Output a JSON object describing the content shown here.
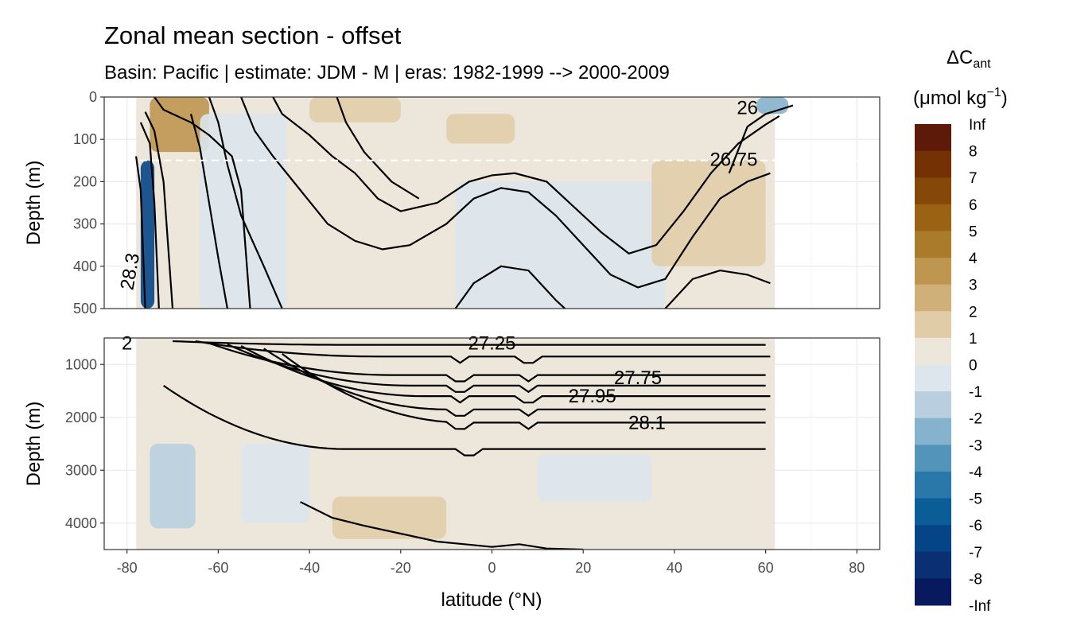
{
  "chart_data": {
    "type": "heatmap",
    "title": "Zonal mean section - offset",
    "subtitle": "Basin: Pacific | estimate: JDM - M | eras: 1982-1999 --> 2000-2009",
    "xlabel": "latitude (°N)",
    "xlim": [
      -85,
      85
    ],
    "xticks": [
      -80,
      -60,
      -40,
      -20,
      0,
      20,
      40,
      60,
      80
    ],
    "panels": [
      {
        "name": "upper",
        "ylabel": "Depth (m)",
        "ylim": [
          0,
          500
        ],
        "yticks": [
          0,
          100,
          200,
          300,
          400,
          500
        ],
        "reference_line_depth": 150,
        "data_lat_range": [
          -78,
          62
        ],
        "fields": [
          {
            "lat": [
              -75,
              -62
            ],
            "depth": [
              0,
              130
            ],
            "value": 3.5
          },
          {
            "lat": [
              -40,
              -20
            ],
            "depth": [
              0,
              60
            ],
            "value": 1.5
          },
          {
            "lat": [
              -10,
              5
            ],
            "depth": [
              40,
              110
            ],
            "value": 1.5
          },
          {
            "lat": [
              -8,
              38
            ],
            "depth": [
              200,
              500
            ],
            "value": -0.5
          },
          {
            "lat": [
              -64,
              -45
            ],
            "depth": [
              40,
              500
            ],
            "value": -0.5
          },
          {
            "lat": [
              -77,
              -74
            ],
            "depth": [
              150,
              500
            ],
            "value": -6
          },
          {
            "lat": [
              35,
              60
            ],
            "depth": [
              150,
              400
            ],
            "value": 1.5
          },
          {
            "lat": [
              58,
              65
            ],
            "depth": [
              0,
              40
            ],
            "value": -2
          }
        ],
        "contour_labels": [
          {
            "text": "26",
            "lat": 56,
            "depth": 25
          },
          {
            "text": "26.75",
            "lat": 53,
            "depth": 148
          },
          {
            "text": "28.3",
            "lat": -78,
            "depth": 400
          }
        ]
      },
      {
        "name": "lower",
        "ylabel": "Depth (m)",
        "ylim": [
          500,
          4500
        ],
        "yticks": [
          1000,
          2000,
          3000,
          4000
        ],
        "data_lat_range": [
          -78,
          62
        ],
        "fields": [
          {
            "lat": [
              -75,
              -65
            ],
            "depth": [
              2500,
              4100
            ],
            "value": -1.5
          },
          {
            "lat": [
              -55,
              -40
            ],
            "depth": [
              2500,
              4000
            ],
            "value": -0.5
          },
          {
            "lat": [
              10,
              35
            ],
            "depth": [
              2700,
              3600
            ],
            "value": -0.5
          },
          {
            "lat": [
              -35,
              -10
            ],
            "depth": [
              3500,
              4300
            ],
            "value": 1.5
          }
        ],
        "contour_labels": [
          {
            "text": "27.25",
            "lat": 0,
            "depth": 600
          },
          {
            "text": "27.75",
            "lat": 32,
            "depth": 1250
          },
          {
            "text": "27.95",
            "lat": 22,
            "depth": 1600
          },
          {
            "text": "28.1",
            "lat": 34,
            "depth": 2100
          },
          {
            "text": "2",
            "lat": -80,
            "depth": 600
          }
        ]
      }
    ],
    "legend": {
      "title_main": "ΔC",
      "title_sub": "ant",
      "unit_text": "(μmol kg",
      "unit_sup": "−1",
      "unit_close": ")",
      "labels": [
        "Inf",
        "8",
        "7",
        "6",
        "5",
        "4",
        "3",
        "2",
        "1",
        "0",
        "-1",
        "-2",
        "-3",
        "-4",
        "-5",
        "-6",
        "-7",
        "-8",
        "-Inf"
      ],
      "colors": [
        "#5e1a08",
        "#743104",
        "#864808",
        "#9a6313",
        "#ab7b2c",
        "#be9650",
        "#cfb079",
        "#e0cda8",
        "#ede6da",
        "#dce6ec",
        "#b9cfdf",
        "#85b2cd",
        "#5394bb",
        "#2a78a9",
        "#0b5d98",
        "#054587",
        "#0b2f73",
        "#081a5d"
      ]
    }
  }
}
